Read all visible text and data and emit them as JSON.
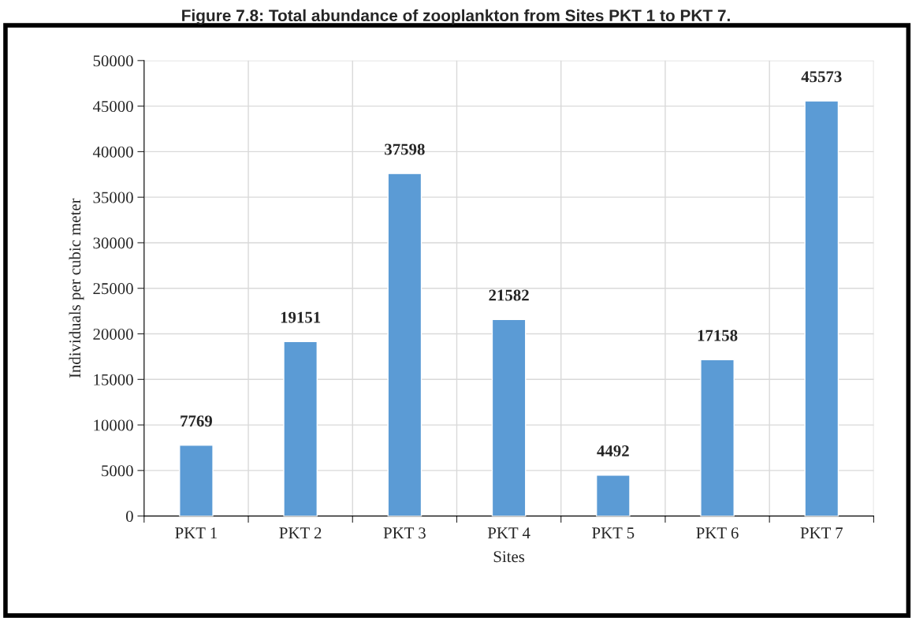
{
  "chart_data": {
    "type": "bar",
    "title": "Figure 7.8: Total abundance of zooplankton from Sites PKT 1 to PKT 7.",
    "xlabel": "Sites",
    "ylabel": "Individuals per cubic meter",
    "categories": [
      "PKT 1",
      "PKT 2",
      "PKT 3",
      "PKT 4",
      "PKT 5",
      "PKT 6",
      "PKT 7"
    ],
    "values": [
      7769,
      19151,
      37598,
      21582,
      4492,
      17158,
      45573
    ],
    "color": "#5b9bd5",
    "data_labels": true,
    "ylim": [
      0,
      50000
    ],
    "yticks": [
      0,
      5000,
      10000,
      15000,
      20000,
      25000,
      30000,
      35000,
      40000,
      45000,
      50000
    ],
    "grid": true
  }
}
